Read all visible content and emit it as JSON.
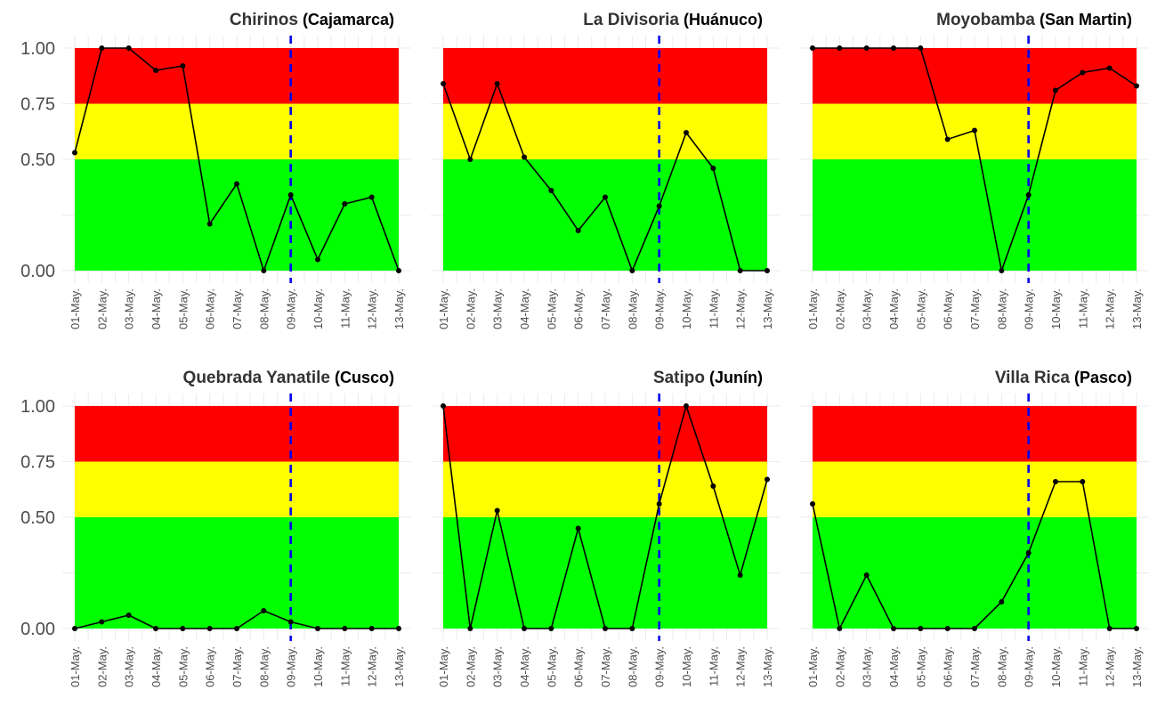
{
  "chart_data": [
    {
      "type": "line",
      "title": "Chirinos",
      "subtitle": "(Cajamarca)",
      "x": [
        "01-May.",
        "02-May.",
        "03-May.",
        "04-May.",
        "05-May.",
        "06-May.",
        "07-May.",
        "08-May.",
        "09-May.",
        "10-May.",
        "11-May.",
        "12-May.",
        "13-May."
      ],
      "y": [
        0.53,
        1.0,
        1.0,
        0.9,
        0.92,
        0.21,
        0.39,
        0.0,
        0.34,
        0.05,
        0.3,
        0.33,
        0.0
      ],
      "y_ticks": [
        "0.00",
        "0.50",
        "0.75",
        "1.00"
      ],
      "ylim": [
        0,
        1
      ],
      "bands": [
        {
          "from": 0,
          "to": 0.5,
          "color": "#00ff00"
        },
        {
          "from": 0.5,
          "to": 0.75,
          "color": "#ffff00"
        },
        {
          "from": 0.75,
          "to": 1,
          "color": "#ff0000"
        }
      ],
      "vline_x": "09-May.",
      "vline_color": "#0000ee"
    },
    {
      "type": "line",
      "title": "La Divisoria",
      "subtitle": "(Huánuco)",
      "x": [
        "01-May.",
        "02-May.",
        "03-May.",
        "04-May.",
        "05-May.",
        "06-May.",
        "07-May.",
        "08-May.",
        "09-May.",
        "10-May.",
        "11-May.",
        "12-May.",
        "13-May."
      ],
      "y": [
        0.84,
        0.5,
        0.84,
        0.51,
        0.36,
        0.18,
        0.33,
        0.0,
        0.29,
        0.62,
        0.46,
        0.0,
        0.0
      ],
      "y_ticks": [
        "0.00",
        "0.50",
        "0.75",
        "1.00"
      ],
      "ylim": [
        0,
        1
      ],
      "bands": [
        {
          "from": 0,
          "to": 0.5,
          "color": "#00ff00"
        },
        {
          "from": 0.5,
          "to": 0.75,
          "color": "#ffff00"
        },
        {
          "from": 0.75,
          "to": 1,
          "color": "#ff0000"
        }
      ],
      "vline_x": "09-May.",
      "vline_color": "#0000ee"
    },
    {
      "type": "line",
      "title": "Moyobamba",
      "subtitle": "(San Martin)",
      "x": [
        "01-May.",
        "02-May.",
        "03-May.",
        "04-May.",
        "05-May.",
        "06-May.",
        "07-May.",
        "08-May.",
        "09-May.",
        "10-May.",
        "11-May.",
        "12-May.",
        "13-May."
      ],
      "y": [
        1.0,
        1.0,
        1.0,
        1.0,
        1.0,
        0.59,
        0.63,
        0.0,
        0.34,
        0.81,
        0.89,
        0.91,
        0.83
      ],
      "y_ticks": [
        "0.00",
        "0.50",
        "0.75",
        "1.00"
      ],
      "ylim": [
        0,
        1
      ],
      "bands": [
        {
          "from": 0,
          "to": 0.5,
          "color": "#00ff00"
        },
        {
          "from": 0.5,
          "to": 0.75,
          "color": "#ffff00"
        },
        {
          "from": 0.75,
          "to": 1,
          "color": "#ff0000"
        }
      ],
      "vline_x": "09-May.",
      "vline_color": "#0000ee"
    },
    {
      "type": "line",
      "title": "Quebrada Yanatile",
      "subtitle": "(Cusco)",
      "x": [
        "01-May.",
        "02-May.",
        "03-May.",
        "04-May.",
        "05-May.",
        "06-May.",
        "07-May.",
        "08-May.",
        "09-May.",
        "10-May.",
        "11-May.",
        "12-May.",
        "13-May."
      ],
      "y": [
        0.0,
        0.03,
        0.06,
        0.0,
        0.0,
        0.0,
        0.0,
        0.08,
        0.03,
        0.0,
        0.0,
        0.0,
        0.0
      ],
      "y_ticks": [
        "0.00",
        "0.50",
        "0.75",
        "1.00"
      ],
      "ylim": [
        0,
        1
      ],
      "bands": [
        {
          "from": 0,
          "to": 0.5,
          "color": "#00ff00"
        },
        {
          "from": 0.5,
          "to": 0.75,
          "color": "#ffff00"
        },
        {
          "from": 0.75,
          "to": 1,
          "color": "#ff0000"
        }
      ],
      "vline_x": "09-May.",
      "vline_color": "#0000ee"
    },
    {
      "type": "line",
      "title": "Satipo",
      "subtitle": "(Junín)",
      "x": [
        "01-May.",
        "02-May.",
        "03-May.",
        "04-May.",
        "05-May.",
        "06-May.",
        "07-May.",
        "08-May.",
        "09-May.",
        "10-May.",
        "11-May.",
        "12-May.",
        "13-May."
      ],
      "y": [
        1.0,
        0.0,
        0.53,
        0.0,
        0.0,
        0.45,
        0.0,
        0.0,
        0.56,
        1.0,
        0.64,
        0.24,
        0.67
      ],
      "y_ticks": [
        "0.00",
        "0.50",
        "0.75",
        "1.00"
      ],
      "ylim": [
        0,
        1
      ],
      "bands": [
        {
          "from": 0,
          "to": 0.5,
          "color": "#00ff00"
        },
        {
          "from": 0.5,
          "to": 0.75,
          "color": "#ffff00"
        },
        {
          "from": 0.75,
          "to": 1,
          "color": "#ff0000"
        }
      ],
      "vline_x": "09-May.",
      "vline_color": "#0000ee"
    },
    {
      "type": "line",
      "title": "Villa Rica",
      "subtitle": "(Pasco)",
      "x": [
        "01-May.",
        "02-May.",
        "03-May.",
        "04-May.",
        "05-May.",
        "06-May.",
        "07-May.",
        "08-May.",
        "09-May.",
        "10-May.",
        "11-May.",
        "12-May.",
        "13-May."
      ],
      "y": [
        0.56,
        0.0,
        0.24,
        0.0,
        0.0,
        0.0,
        0.0,
        0.12,
        0.34,
        0.66,
        0.66,
        0.0,
        0.0
      ],
      "y_ticks": [
        "0.00",
        "0.50",
        "0.75",
        "1.00"
      ],
      "ylim": [
        0,
        1
      ],
      "bands": [
        {
          "from": 0,
          "to": 0.5,
          "color": "#00ff00"
        },
        {
          "from": 0.5,
          "to": 0.75,
          "color": "#ffff00"
        },
        {
          "from": 0.75,
          "to": 1,
          "color": "#ff0000"
        }
      ],
      "vline_x": "09-May.",
      "vline_color": "#0000ee"
    }
  ]
}
